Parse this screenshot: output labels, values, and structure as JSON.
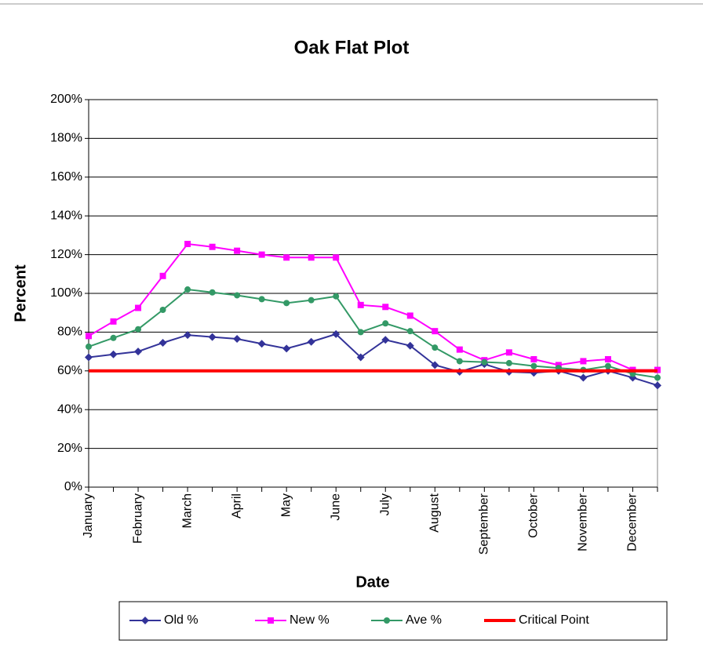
{
  "chart_data": {
    "type": "line",
    "title": "Oak Flat Plot",
    "x_label": "Date",
    "y_label": "Percent",
    "categories": [
      "January",
      null,
      "February",
      null,
      "March",
      null,
      "April",
      null,
      "May",
      null,
      "June",
      null,
      "July",
      null,
      "August",
      null,
      "September",
      null,
      "October",
      null,
      "November",
      null,
      "December",
      null
    ],
    "series": [
      {
        "name": "Old %",
        "color": "#333399",
        "marker": "diamond",
        "values": [
          67,
          68.5,
          70,
          74.5,
          78.5,
          77.5,
          76.5,
          74,
          71.5,
          75,
          79,
          67,
          76,
          73,
          63,
          59.5,
          63.5,
          59.5,
          59,
          60,
          56.5,
          60,
          56.5,
          52.5
        ]
      },
      {
        "name": "New %",
        "color": "#ff00ff",
        "marker": "square",
        "values": [
          78,
          85.5,
          92.5,
          109,
          125.5,
          124,
          122,
          120,
          118.5,
          118.5,
          118.5,
          94,
          93,
          88.5,
          80.5,
          71,
          65.5,
          69.5,
          66,
          63,
          65,
          66,
          60.5,
          60.5
        ]
      },
      {
        "name": "Ave %",
        "color": "#339966",
        "marker": "circle",
        "values": [
          72.5,
          77,
          81.5,
          91.5,
          102,
          100.5,
          99,
          97,
          95,
          96.5,
          98.5,
          80,
          84.5,
          80.5,
          72,
          65,
          64.5,
          64,
          62.5,
          61.5,
          60.5,
          62.5,
          58.5,
          56.5
        ]
      },
      {
        "name": "Critical Point",
        "color": "#ff0000",
        "marker": "none",
        "values": [
          60,
          60,
          60,
          60,
          60,
          60,
          60,
          60,
          60,
          60,
          60,
          60,
          60,
          60,
          60,
          60,
          60,
          60,
          60,
          60,
          60,
          60,
          60,
          60
        ]
      }
    ],
    "ylim": [
      0,
      200
    ],
    "yticks": [
      {
        "value": 0,
        "label": "0%"
      },
      {
        "value": 20,
        "label": "20%"
      },
      {
        "value": 40,
        "label": "40%"
      },
      {
        "value": 60,
        "label": "60%"
      },
      {
        "value": 80,
        "label": "80%"
      },
      {
        "value": 100,
        "label": "100%"
      },
      {
        "value": 120,
        "label": "120%"
      },
      {
        "value": 140,
        "label": "140%"
      },
      {
        "value": 160,
        "label": "160%"
      },
      {
        "value": 180,
        "label": "180%"
      },
      {
        "value": 200,
        "label": "200%"
      }
    ],
    "grid": true,
    "legend": "bottom"
  }
}
